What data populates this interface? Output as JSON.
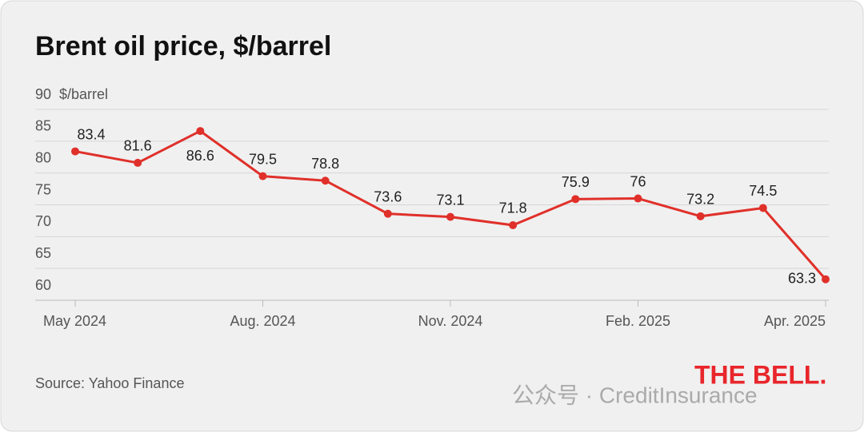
{
  "chart_data": {
    "type": "line",
    "title": "Brent oil price, $/barrel",
    "y_unit": "$/barrel",
    "categories": [
      "May 2024",
      null,
      null,
      "Aug. 2024",
      null,
      null,
      "Nov. 2024",
      null,
      null,
      "Feb. 2025",
      null,
      null,
      "Apr. 2025"
    ],
    "series": [
      {
        "name": "Brent",
        "color": "#e0302a",
        "values": [
          83.4,
          81.6,
          86.6,
          79.5,
          78.8,
          73.6,
          73.1,
          71.8,
          75.9,
          76,
          73.2,
          74.5,
          63.3
        ]
      }
    ],
    "ylim": [
      60,
      90
    ],
    "yticks": [
      60,
      65,
      70,
      75,
      80,
      85,
      90
    ],
    "grid": true,
    "source": "Source: Yahoo Finance",
    "logo": "THE BELL.",
    "watermark": "公众号 · CreditInsurance"
  }
}
